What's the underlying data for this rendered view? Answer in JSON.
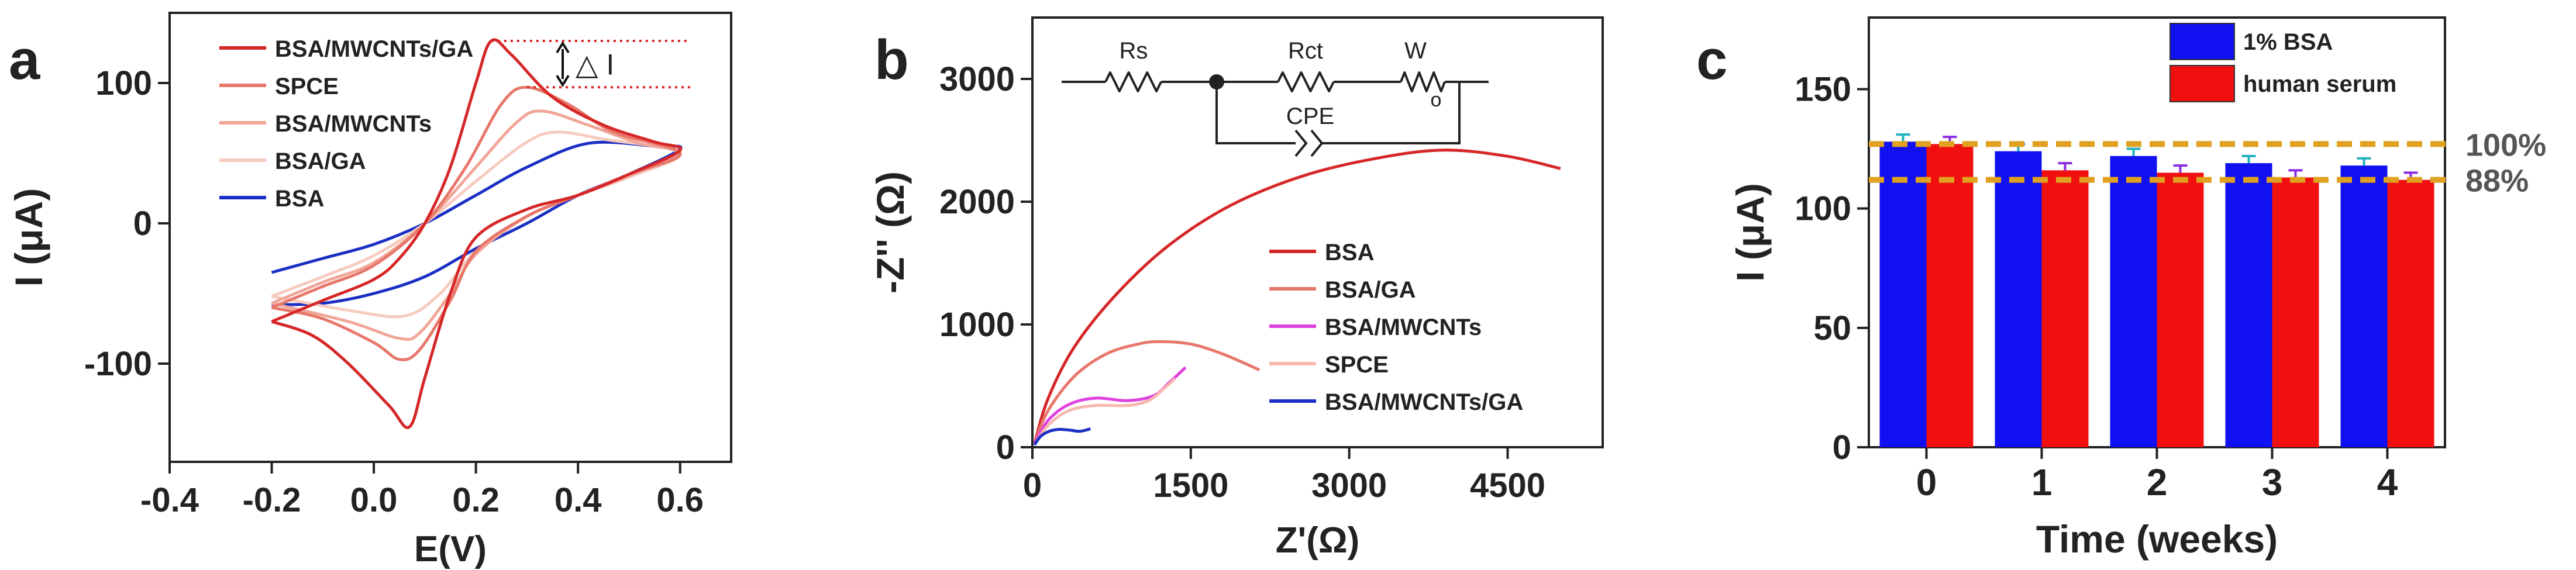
{
  "panels": [
    {
      "letter": "a",
      "chart_data": {
        "type": "line",
        "title": "",
        "xlabel": "E(V)",
        "ylabel": "I (μA)",
        "xlim": [
          -0.4,
          0.7
        ],
        "ylim": [
          -170,
          150
        ],
        "xticks": [
          -0.4,
          -0.2,
          0.0,
          0.2,
          0.4,
          0.6
        ],
        "xtick_labels": [
          "-0.4",
          "-0.2",
          "0.0",
          "0.2",
          "0.4",
          "0.6"
        ],
        "yticks": [
          -100,
          0,
          100
        ],
        "ytick_labels": [
          "-100",
          "0",
          "100"
        ],
        "grid": false,
        "legend_position": "top-left",
        "annotation": "△ I",
        "delta_i_levels": [
          130,
          97
        ],
        "series": [
          {
            "name": "BSA/MWCNTs/GA",
            "color": "#d62728",
            "forward": [
              [
                -0.2,
                -70
              ],
              [
                -0.1,
                -55
              ],
              [
                0.0,
                -40
              ],
              [
                0.05,
                -25
              ],
              [
                0.1,
                0
              ],
              [
                0.15,
                40
              ],
              [
                0.2,
                100
              ],
              [
                0.23,
                130
              ],
              [
                0.27,
                120
              ],
              [
                0.35,
                90
              ],
              [
                0.45,
                70
              ],
              [
                0.55,
                58
              ],
              [
                0.6,
                52
              ]
            ],
            "reverse": [
              [
                0.6,
                52
              ],
              [
                0.5,
                35
              ],
              [
                0.4,
                20
              ],
              [
                0.3,
                10
              ],
              [
                0.2,
                -10
              ],
              [
                0.15,
                -50
              ],
              [
                0.1,
                -110
              ],
              [
                0.07,
                -145
              ],
              [
                0.03,
                -130
              ],
              [
                -0.05,
                -100
              ],
              [
                -0.12,
                -80
              ],
              [
                -0.2,
                -70
              ]
            ]
          },
          {
            "name": "SPCE",
            "color": "#e8776b",
            "forward": [
              [
                -0.2,
                -60
              ],
              [
                -0.1,
                -45
              ],
              [
                0.0,
                -30
              ],
              [
                0.1,
                0
              ],
              [
                0.18,
                40
              ],
              [
                0.25,
                85
              ],
              [
                0.3,
                97
              ],
              [
                0.38,
                85
              ],
              [
                0.47,
                65
              ],
              [
                0.6,
                50
              ]
            ],
            "reverse": [
              [
                0.6,
                50
              ],
              [
                0.5,
                35
              ],
              [
                0.4,
                20
              ],
              [
                0.3,
                5
              ],
              [
                0.2,
                -20
              ],
              [
                0.15,
                -55
              ],
              [
                0.09,
                -90
              ],
              [
                0.05,
                -97
              ],
              [
                0.0,
                -85
              ],
              [
                -0.1,
                -68
              ],
              [
                -0.2,
                -60
              ]
            ]
          },
          {
            "name": "BSA/MWCNTs",
            "color": "#f1a597",
            "forward": [
              [
                -0.2,
                -57
              ],
              [
                -0.1,
                -42
              ],
              [
                0.0,
                -28
              ],
              [
                0.1,
                0
              ],
              [
                0.2,
                40
              ],
              [
                0.28,
                72
              ],
              [
                0.33,
                80
              ],
              [
                0.42,
                70
              ],
              [
                0.52,
                57
              ],
              [
                0.6,
                50
              ]
            ],
            "reverse": [
              [
                0.6,
                50
              ],
              [
                0.5,
                34
              ],
              [
                0.4,
                20
              ],
              [
                0.3,
                5
              ],
              [
                0.2,
                -22
              ],
              [
                0.15,
                -50
              ],
              [
                0.09,
                -78
              ],
              [
                0.05,
                -82
              ],
              [
                -0.05,
                -70
              ],
              [
                -0.2,
                -57
              ]
            ]
          },
          {
            "name": "BSA/GA",
            "color": "#f7cbbf",
            "forward": [
              [
                -0.2,
                -52
              ],
              [
                -0.1,
                -38
              ],
              [
                0.0,
                -23
              ],
              [
                0.1,
                0
              ],
              [
                0.2,
                30
              ],
              [
                0.3,
                58
              ],
              [
                0.36,
                65
              ],
              [
                0.45,
                60
              ],
              [
                0.6,
                50
              ]
            ],
            "reverse": [
              [
                0.6,
                50
              ],
              [
                0.5,
                33
              ],
              [
                0.4,
                20
              ],
              [
                0.3,
                5
              ],
              [
                0.2,
                -20
              ],
              [
                0.13,
                -50
              ],
              [
                0.06,
                -66
              ],
              [
                -0.05,
                -62
              ],
              [
                -0.2,
                -52
              ]
            ]
          },
          {
            "name": "BSA",
            "color": "#1a2fc4",
            "forward": [
              [
                -0.2,
                -35
              ],
              [
                -0.1,
                -25
              ],
              [
                0.0,
                -15
              ],
              [
                0.1,
                0
              ],
              [
                0.2,
                20
              ],
              [
                0.3,
                40
              ],
              [
                0.42,
                57
              ],
              [
                0.55,
                55
              ],
              [
                0.6,
                53
              ]
            ],
            "reverse": [
              [
                0.6,
                53
              ],
              [
                0.5,
                35
              ],
              [
                0.4,
                20
              ],
              [
                0.3,
                0
              ],
              [
                0.2,
                -18
              ],
              [
                0.1,
                -38
              ],
              [
                0.0,
                -50
              ],
              [
                -0.1,
                -57
              ],
              [
                -0.2,
                -58
              ]
            ]
          }
        ]
      }
    },
    {
      "letter": "b",
      "chart_data": {
        "type": "line",
        "title": "",
        "xlabel": "Z'(Ω)",
        "ylabel": "-Z'' (Ω)",
        "xlim": [
          0,
          5400
        ],
        "ylim": [
          0,
          3500
        ],
        "xticks": [
          0,
          1500,
          3000,
          4500
        ],
        "xtick_labels": [
          "0",
          "1500",
          "3000",
          "4500"
        ],
        "yticks": [
          0,
          1000,
          2000,
          3000
        ],
        "ytick_labels": [
          "0",
          "1000",
          "2000",
          "3000"
        ],
        "grid": false,
        "legend_position": "center-right",
        "circuit": {
          "rs": "Rs",
          "rct": "Rct",
          "w": "W",
          "w_sub": "o",
          "cpe": "CPE"
        },
        "series": [
          {
            "name": "BSA",
            "color": "#d62728",
            "points": [
              [
                20,
                30
              ],
              [
                150,
                400
              ],
              [
                400,
                820
              ],
              [
                800,
                1250
              ],
              [
                1300,
                1650
              ],
              [
                1900,
                1980
              ],
              [
                2600,
                2220
              ],
              [
                3300,
                2360
              ],
              [
                3900,
                2420
              ],
              [
                4500,
                2370
              ],
              [
                5000,
                2270
              ]
            ]
          },
          {
            "name": "BSA/GA",
            "color": "#e8776b",
            "points": [
              [
                20,
                30
              ],
              [
                150,
                300
              ],
              [
                400,
                580
              ],
              [
                700,
                760
              ],
              [
                1000,
                840
              ],
              [
                1200,
                860
              ],
              [
                1500,
                840
              ],
              [
                1800,
                760
              ],
              [
                2150,
                630
              ]
            ]
          },
          {
            "name": "BSA/MWCNTs",
            "color": "#e040e0",
            "points": [
              [
                20,
                30
              ],
              [
                150,
                220
              ],
              [
                350,
                350
              ],
              [
                600,
                400
              ],
              [
                900,
                380
              ],
              [
                1150,
                420
              ],
              [
                1300,
                530
              ],
              [
                1450,
                650
              ]
            ]
          },
          {
            "name": "SPCE",
            "color": "#f7b8ad",
            "points": [
              [
                20,
                20
              ],
              [
                150,
                180
              ],
              [
                350,
                300
              ],
              [
                600,
                340
              ],
              [
                900,
                340
              ],
              [
                1100,
                380
              ],
              [
                1250,
                480
              ],
              [
                1350,
                560
              ]
            ]
          },
          {
            "name": "BSA/MWCNTs/GA",
            "color": "#1a2fc4",
            "points": [
              [
                20,
                20
              ],
              [
                80,
                90
              ],
              [
                160,
                130
              ],
              [
                250,
                145
              ],
              [
                350,
                140
              ],
              [
                450,
                130
              ],
              [
                550,
                150
              ]
            ]
          }
        ]
      }
    },
    {
      "letter": "c",
      "chart_data": {
        "type": "bar",
        "title": "",
        "xlabel": "Time (weeks)",
        "ylabel": "I (μA)",
        "categories": [
          "0",
          "1",
          "2",
          "3",
          "4"
        ],
        "ylim": [
          0,
          180
        ],
        "yticks": [
          0,
          50,
          100,
          150
        ],
        "ytick_labels": [
          "0",
          "50",
          "100",
          "150"
        ],
        "grid": false,
        "legend_position": "top-right",
        "reference_lines": [
          {
            "label": "100%",
            "value": 127
          },
          {
            "label": "88%",
            "value": 112
          }
        ],
        "series": [
          {
            "name": "1% BSA",
            "color": "#1010f0",
            "values": [
              128,
              124,
              122,
              119,
              118
            ],
            "errors": [
              3,
              3,
              3,
              3,
              3
            ],
            "error_color": "#20b0c0"
          },
          {
            "name": "human serum",
            "color": "#f01010",
            "values": [
              127,
              116,
              115,
              113,
              112
            ],
            "errors": [
              3,
              3,
              3,
              3,
              3
            ],
            "error_color": "#8a2be2"
          }
        ]
      }
    }
  ]
}
